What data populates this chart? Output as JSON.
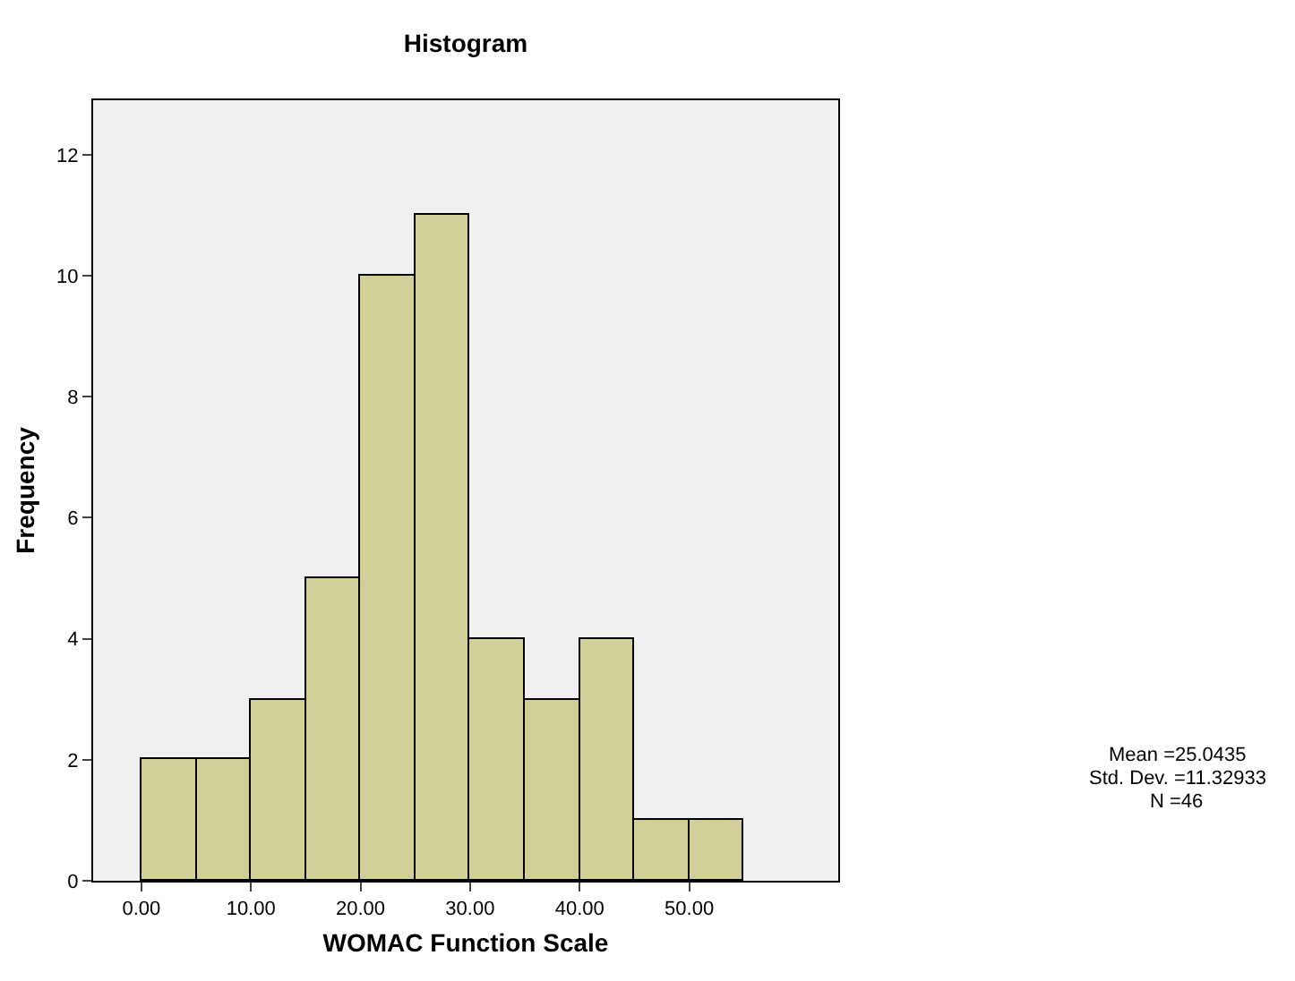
{
  "chart_data": {
    "type": "histogram",
    "title": "Histogram",
    "xlabel": "WOMAC Function Scale",
    "ylabel": "Frequency",
    "bins": [
      0,
      5,
      10,
      15,
      20,
      25,
      30,
      35,
      40,
      45,
      50,
      55
    ],
    "values": [
      2,
      2,
      3,
      5,
      10,
      11,
      4,
      3,
      4,
      1,
      1
    ],
    "color": "#d3cf98",
    "xlim": [
      -4.4,
      63.6
    ],
    "xticks": [
      {
        "value": 0,
        "label": "0.00"
      },
      {
        "value": 10,
        "label": "10.00"
      },
      {
        "value": 20,
        "label": "20.00"
      },
      {
        "value": 30,
        "label": "30.00"
      },
      {
        "value": 40,
        "label": "40.00"
      },
      {
        "value": 50,
        "label": "50.00"
      }
    ],
    "ylim": [
      0,
      12.9
    ],
    "yticks": [
      0,
      2,
      4,
      6,
      8,
      10,
      12
    ],
    "grid": false,
    "annotations": [
      "Mean =25.0435",
      "Std. Dev. =11.32933",
      "N =46"
    ]
  }
}
